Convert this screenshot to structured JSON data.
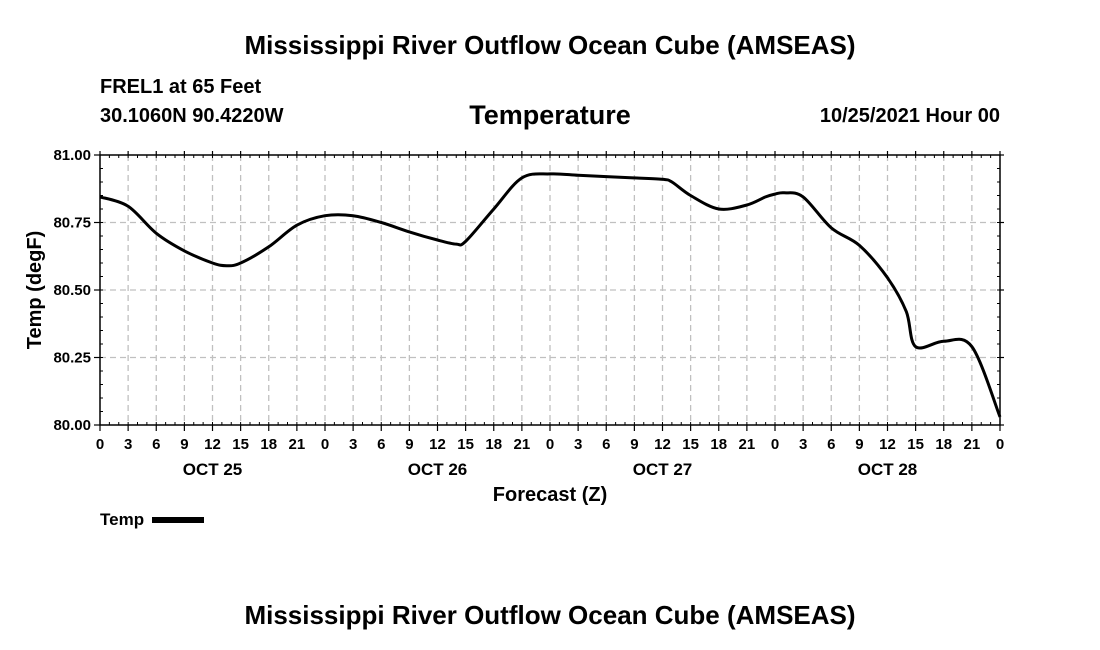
{
  "header": {
    "title": "Mississippi River Outflow Ocean Cube (AMSEAS)",
    "station": "FREL1 at 65 Feet",
    "coords": "30.1060N  90.4220W",
    "chart_title": "Temperature",
    "run_time": "10/25/2021 Hour 00"
  },
  "footer": {
    "title": "Mississippi River Outflow Ocean Cube (AMSEAS)"
  },
  "legend": {
    "label": "Temp"
  },
  "colors": {
    "line": "#000000",
    "grid": "#c0c0c0",
    "background": "#ffffff"
  },
  "chart_data": {
    "type": "line",
    "title": "Temperature",
    "xlabel": "Forecast (Z)",
    "ylabel": "Temp (degF)",
    "ylim": [
      80.0,
      81.0
    ],
    "xlim": [
      0,
      96
    ],
    "x_ticks": [
      0,
      3,
      6,
      9,
      12,
      15,
      18,
      21,
      24,
      27,
      30,
      33,
      36,
      39,
      42,
      45,
      48,
      51,
      54,
      57,
      60,
      63,
      66,
      69,
      72,
      75,
      78,
      81,
      84,
      87,
      90,
      93,
      96
    ],
    "x_tick_labels": [
      "0",
      "3",
      "6",
      "9",
      "12",
      "15",
      "18",
      "21",
      "0",
      "3",
      "6",
      "9",
      "12",
      "15",
      "18",
      "21",
      "0",
      "3",
      "6",
      "9",
      "12",
      "15",
      "18",
      "21",
      "0",
      "3",
      "6",
      "9",
      "12",
      "15",
      "18",
      "21",
      "0"
    ],
    "date_labels": [
      {
        "x": 12,
        "label": "OCT 25"
      },
      {
        "x": 36,
        "label": "OCT 26"
      },
      {
        "x": 60,
        "label": "OCT 27"
      },
      {
        "x": 84,
        "label": "OCT 28"
      }
    ],
    "y_ticks": [
      80.0,
      80.25,
      80.5,
      80.75,
      81.0
    ],
    "y_tick_labels": [
      "80.00",
      "80.25",
      "80.50",
      "80.75",
      "81.00"
    ],
    "grid": true,
    "series": [
      {
        "name": "Temp",
        "x": [
          0,
          3,
          6,
          9,
          12,
          13.5,
          15,
          18,
          21,
          24,
          27,
          30,
          33,
          36,
          38,
          39,
          42,
          45,
          48,
          51,
          54,
          57,
          60,
          61,
          63,
          66,
          69,
          71,
          72,
          73,
          75,
          78,
          81,
          84,
          86,
          87,
          90,
          93,
          96
        ],
        "y": [
          80.845,
          80.81,
          80.71,
          80.645,
          80.6,
          80.59,
          80.6,
          80.66,
          80.74,
          80.775,
          80.775,
          80.75,
          80.715,
          80.685,
          80.67,
          80.68,
          80.8,
          80.915,
          80.93,
          80.925,
          80.92,
          80.915,
          80.91,
          80.9,
          80.85,
          80.8,
          80.815,
          80.845,
          80.855,
          80.86,
          80.845,
          80.73,
          80.665,
          80.545,
          80.42,
          80.29,
          80.31,
          80.29,
          80.03
        ]
      }
    ]
  }
}
